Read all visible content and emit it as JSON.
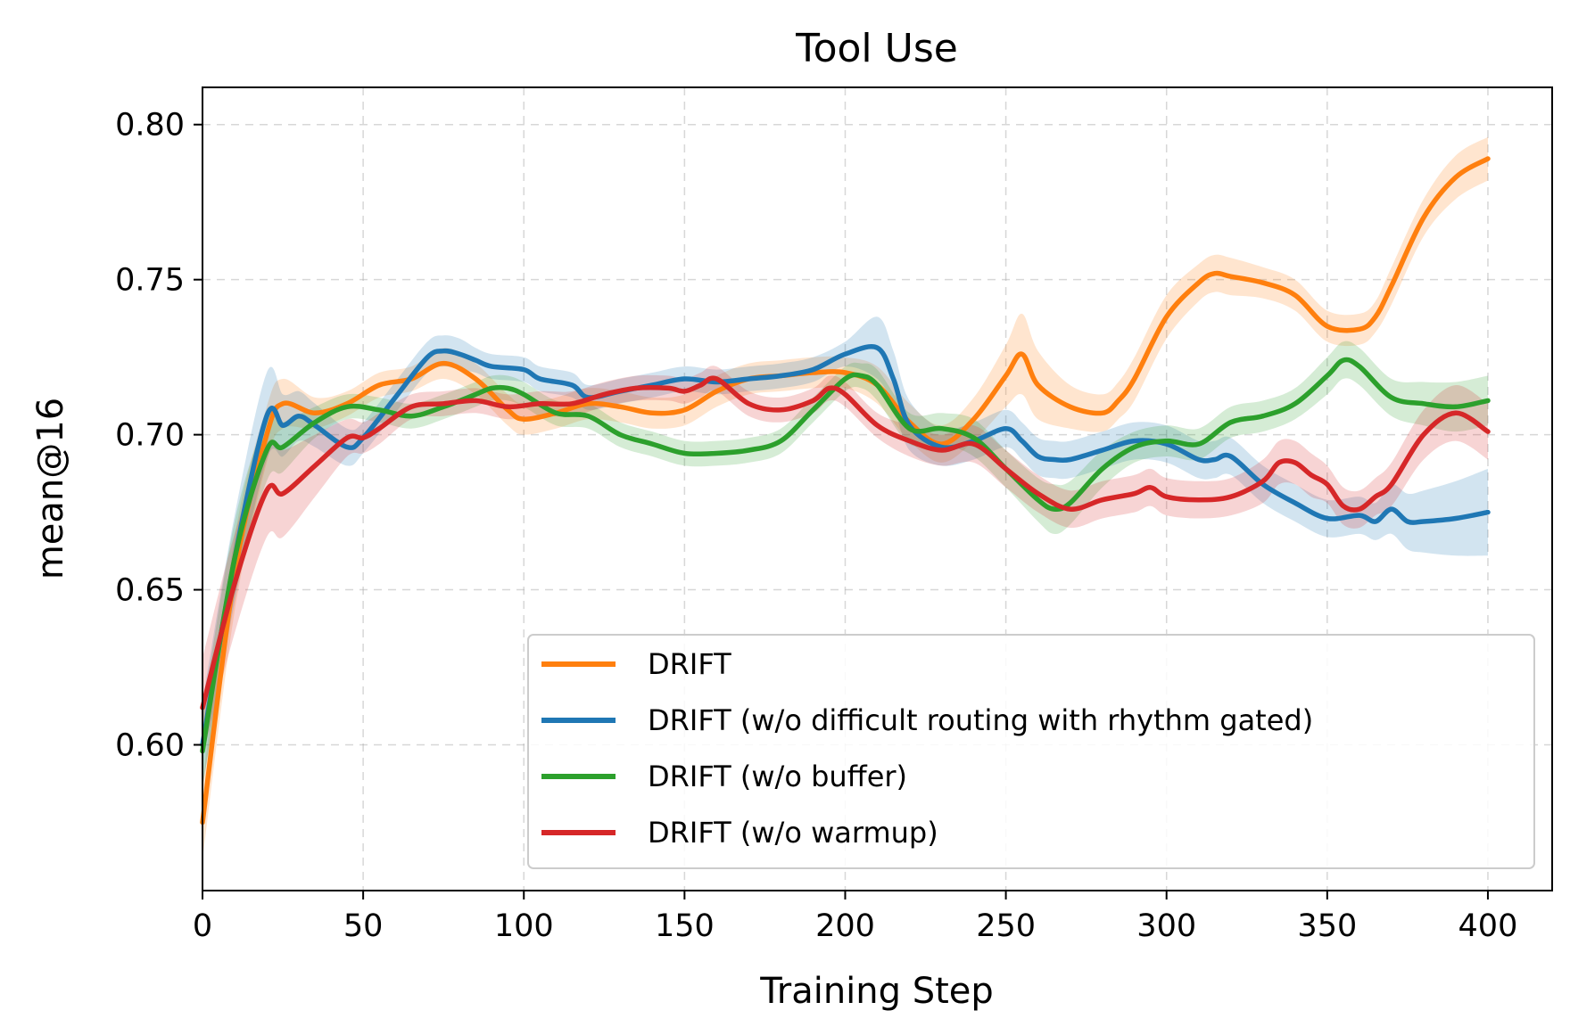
{
  "chart_data": {
    "type": "line",
    "title": "Tool Use",
    "xlabel": "Training Step",
    "ylabel": "mean@16",
    "xlim": [
      0,
      420
    ],
    "ylim": [
      0.553,
      0.812
    ],
    "xticks": [
      0,
      50,
      100,
      150,
      200,
      250,
      300,
      350,
      400
    ],
    "xtick_labels": [
      "0",
      "50",
      "100",
      "150",
      "200",
      "250",
      "300",
      "350",
      "400"
    ],
    "yticks": [
      0.6,
      0.65,
      0.7,
      0.75,
      0.8
    ],
    "ytick_labels": [
      "0.60",
      "0.65",
      "0.70",
      "0.75",
      "0.80"
    ],
    "grid": true,
    "legend_position": "lower-right",
    "series": [
      {
        "name": "DRIFT",
        "color": "#ff7f0e",
        "x": [
          0,
          10,
          20,
          25,
          35,
          45,
          55,
          65,
          75,
          85,
          95,
          100,
          110,
          120,
          130,
          140,
          150,
          160,
          170,
          180,
          190,
          200,
          210,
          220,
          230,
          240,
          250,
          255,
          260,
          270,
          280,
          285,
          290,
          300,
          310,
          315,
          320,
          330,
          340,
          350,
          360,
          365,
          370,
          380,
          390,
          400
        ],
        "y": [
          0.575,
          0.655,
          0.7,
          0.71,
          0.707,
          0.71,
          0.716,
          0.718,
          0.723,
          0.718,
          0.708,
          0.705,
          0.707,
          0.71,
          0.709,
          0.707,
          0.708,
          0.714,
          0.718,
          0.719,
          0.72,
          0.72,
          0.716,
          0.704,
          0.697,
          0.705,
          0.719,
          0.726,
          0.716,
          0.709,
          0.707,
          0.711,
          0.718,
          0.738,
          0.749,
          0.752,
          0.751,
          0.749,
          0.745,
          0.735,
          0.734,
          0.738,
          0.748,
          0.77,
          0.783,
          0.789
        ],
        "band": [
          0.012,
          0.012,
          0.009,
          0.008,
          0.005,
          0.004,
          0.004,
          0.004,
          0.005,
          0.005,
          0.005,
          0.005,
          0.005,
          0.005,
          0.005,
          0.005,
          0.005,
          0.005,
          0.005,
          0.005,
          0.005,
          0.005,
          0.006,
          0.006,
          0.006,
          0.007,
          0.01,
          0.013,
          0.011,
          0.007,
          0.006,
          0.006,
          0.007,
          0.007,
          0.006,
          0.006,
          0.006,
          0.005,
          0.005,
          0.005,
          0.005,
          0.005,
          0.006,
          0.006,
          0.007,
          0.007
        ]
      },
      {
        "name": "DRIFT (w/o difficult routing with rhythm gated)",
        "color": "#1f77b4",
        "x": [
          0,
          10,
          20,
          25,
          30,
          35,
          45,
          50,
          60,
          70,
          75,
          80,
          85,
          90,
          100,
          105,
          115,
          120,
          130,
          140,
          150,
          160,
          170,
          180,
          190,
          200,
          210,
          215,
          220,
          230,
          240,
          250,
          255,
          260,
          265,
          270,
          280,
          290,
          300,
          310,
          315,
          320,
          330,
          340,
          350,
          360,
          365,
          370,
          375,
          380,
          390,
          400
        ],
        "y": [
          0.6,
          0.66,
          0.706,
          0.703,
          0.706,
          0.703,
          0.696,
          0.699,
          0.712,
          0.725,
          0.727,
          0.726,
          0.724,
          0.722,
          0.721,
          0.718,
          0.716,
          0.712,
          0.714,
          0.716,
          0.718,
          0.717,
          0.718,
          0.719,
          0.721,
          0.726,
          0.728,
          0.718,
          0.703,
          0.696,
          0.698,
          0.702,
          0.698,
          0.693,
          0.692,
          0.692,
          0.695,
          0.698,
          0.697,
          0.692,
          0.692,
          0.693,
          0.684,
          0.678,
          0.673,
          0.674,
          0.672,
          0.676,
          0.672,
          0.672,
          0.673,
          0.675
        ],
        "band": [
          0.014,
          0.014,
          0.014,
          0.01,
          0.008,
          0.007,
          0.006,
          0.005,
          0.005,
          0.005,
          0.005,
          0.005,
          0.004,
          0.004,
          0.004,
          0.004,
          0.004,
          0.004,
          0.004,
          0.004,
          0.004,
          0.004,
          0.004,
          0.004,
          0.004,
          0.004,
          0.01,
          0.009,
          0.008,
          0.006,
          0.006,
          0.006,
          0.006,
          0.006,
          0.006,
          0.006,
          0.006,
          0.006,
          0.006,
          0.006,
          0.006,
          0.006,
          0.006,
          0.006,
          0.006,
          0.006,
          0.006,
          0.008,
          0.009,
          0.01,
          0.012,
          0.014
        ]
      },
      {
        "name": "DRIFT (w/o buffer)",
        "color": "#2ca02c",
        "x": [
          0,
          10,
          20,
          25,
          35,
          45,
          55,
          65,
          75,
          85,
          90,
          95,
          100,
          110,
          120,
          130,
          140,
          150,
          160,
          170,
          180,
          190,
          200,
          205,
          210,
          220,
          230,
          240,
          250,
          260,
          265,
          270,
          280,
          290,
          300,
          310,
          320,
          330,
          340,
          350,
          355,
          360,
          370,
          380,
          390,
          400
        ],
        "y": [
          0.598,
          0.66,
          0.695,
          0.696,
          0.704,
          0.709,
          0.708,
          0.706,
          0.709,
          0.713,
          0.715,
          0.715,
          0.713,
          0.707,
          0.706,
          0.7,
          0.697,
          0.694,
          0.694,
          0.695,
          0.698,
          0.708,
          0.718,
          0.719,
          0.716,
          0.702,
          0.702,
          0.699,
          0.689,
          0.679,
          0.676,
          0.678,
          0.689,
          0.696,
          0.698,
          0.697,
          0.704,
          0.706,
          0.71,
          0.719,
          0.724,
          0.722,
          0.712,
          0.71,
          0.709,
          0.711
        ],
        "band": [
          0.012,
          0.012,
          0.01,
          0.008,
          0.005,
          0.004,
          0.004,
          0.004,
          0.004,
          0.004,
          0.004,
          0.004,
          0.004,
          0.004,
          0.004,
          0.004,
          0.004,
          0.004,
          0.004,
          0.004,
          0.004,
          0.004,
          0.004,
          0.004,
          0.005,
          0.005,
          0.005,
          0.006,
          0.006,
          0.007,
          0.008,
          0.007,
          0.006,
          0.005,
          0.005,
          0.005,
          0.005,
          0.005,
          0.005,
          0.006,
          0.006,
          0.006,
          0.006,
          0.007,
          0.008,
          0.008
        ]
      },
      {
        "name": "DRIFT (w/o warmup)",
        "color": "#d62728",
        "x": [
          0,
          10,
          20,
          25,
          35,
          45,
          50,
          55,
          65,
          75,
          85,
          95,
          105,
          115,
          125,
          135,
          145,
          150,
          155,
          160,
          170,
          180,
          190,
          195,
          200,
          210,
          220,
          230,
          240,
          250,
          260,
          270,
          280,
          290,
          295,
          300,
          310,
          320,
          330,
          335,
          340,
          345,
          350,
          355,
          360,
          365,
          370,
          380,
          390,
          400
        ],
        "y": [
          0.612,
          0.652,
          0.682,
          0.681,
          0.69,
          0.699,
          0.699,
          0.702,
          0.709,
          0.71,
          0.711,
          0.709,
          0.71,
          0.71,
          0.713,
          0.715,
          0.715,
          0.714,
          0.716,
          0.718,
          0.71,
          0.708,
          0.711,
          0.715,
          0.713,
          0.703,
          0.698,
          0.695,
          0.697,
          0.689,
          0.681,
          0.676,
          0.679,
          0.681,
          0.683,
          0.68,
          0.679,
          0.68,
          0.685,
          0.691,
          0.691,
          0.687,
          0.684,
          0.677,
          0.676,
          0.68,
          0.684,
          0.7,
          0.707,
          0.701
        ],
        "band": [
          0.016,
          0.016,
          0.015,
          0.014,
          0.01,
          0.006,
          0.005,
          0.005,
          0.004,
          0.004,
          0.004,
          0.004,
          0.004,
          0.004,
          0.004,
          0.004,
          0.004,
          0.004,
          0.004,
          0.004,
          0.004,
          0.004,
          0.004,
          0.004,
          0.004,
          0.004,
          0.005,
          0.005,
          0.006,
          0.006,
          0.006,
          0.006,
          0.006,
          0.006,
          0.006,
          0.006,
          0.006,
          0.006,
          0.007,
          0.007,
          0.007,
          0.007,
          0.006,
          0.006,
          0.006,
          0.006,
          0.007,
          0.008,
          0.009,
          0.009
        ]
      }
    ]
  }
}
